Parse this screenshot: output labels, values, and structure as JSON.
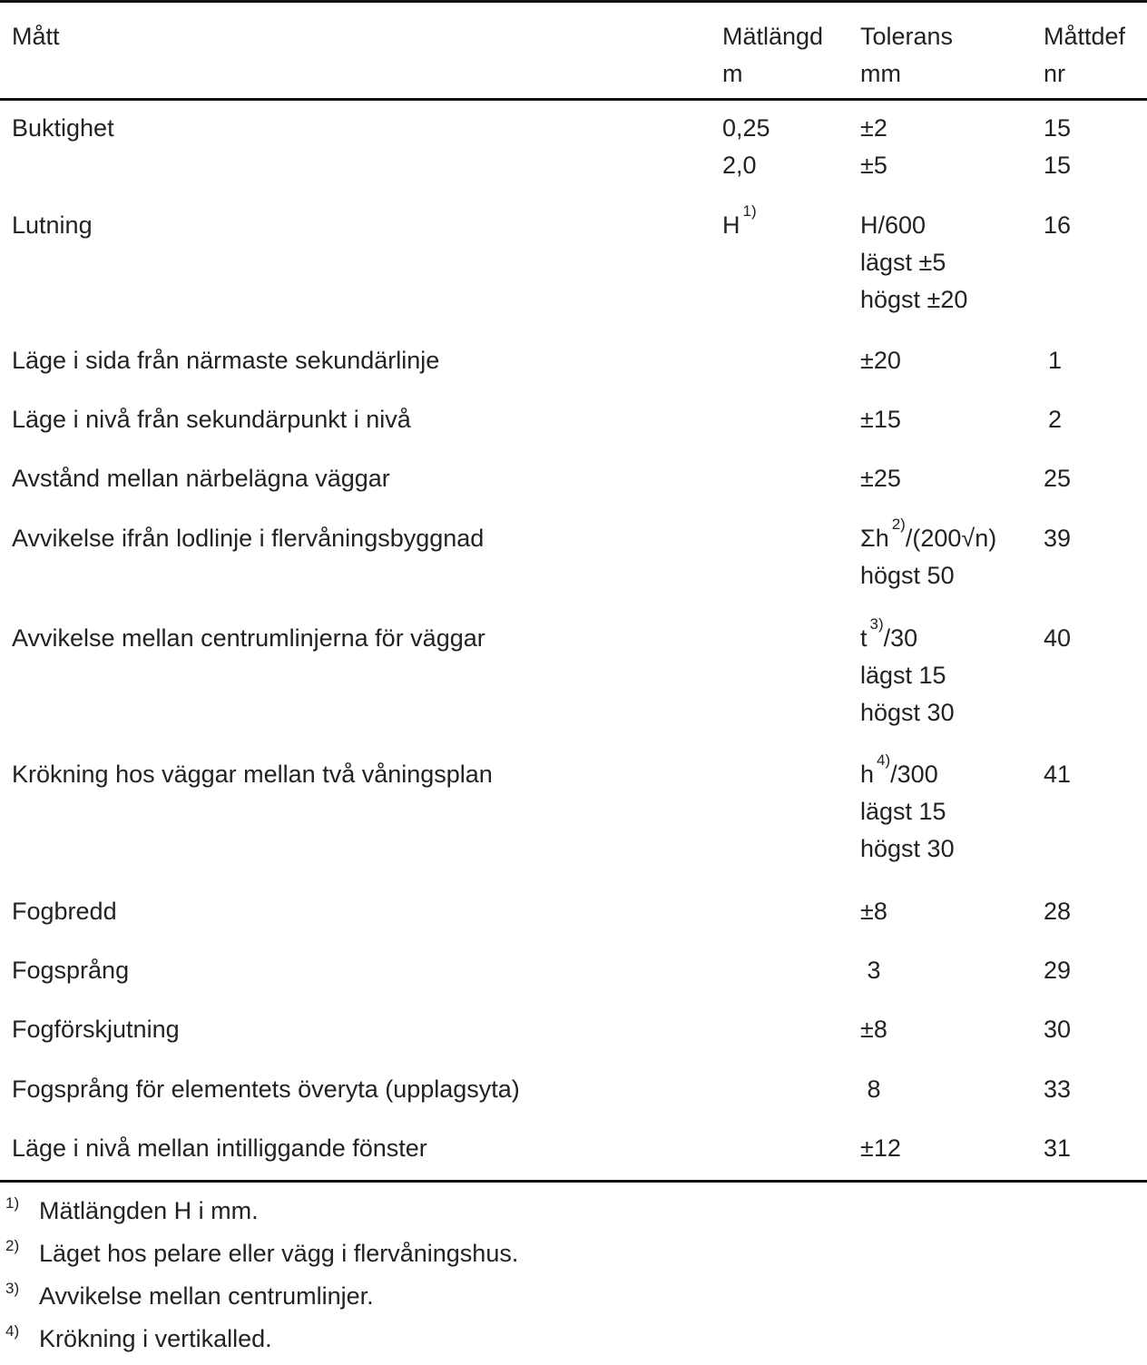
{
  "table": {
    "headers": [
      [
        "Mått"
      ],
      [
        "Mätlängd",
        "m"
      ],
      [
        "Tolerans",
        "mm"
      ],
      [
        "Måttdef",
        "nr"
      ]
    ],
    "rows": [
      {
        "matt": "Buktighet",
        "matlangd": [
          "0,25",
          "2,0"
        ],
        "tolerans": [
          "±2",
          "±5"
        ],
        "nr": [
          "15",
          "15"
        ]
      },
      {
        "matt": "Lutning",
        "matlangd": [
          "H"
        ],
        "matlangd_note": "1)",
        "tolerans": [
          "H/600",
          "lägst ±5",
          "högst ±20"
        ],
        "nr": [
          "16"
        ]
      },
      {
        "matt": "Läge i sida från närmaste sekundärlinje",
        "matlangd": [],
        "tolerans": [
          "±20"
        ],
        "nr": [
          "1"
        ]
      },
      {
        "matt": "Läge i nivå från sekundärpunkt i nivå",
        "matlangd": [],
        "tolerans": [
          "±15"
        ],
        "nr": [
          "2"
        ]
      },
      {
        "matt": "Avstånd mellan närbelägna väggar",
        "matlangd": [],
        "tolerans": [
          "±25"
        ],
        "nr": [
          "25"
        ]
      },
      {
        "matt": "Avvikelse ifrån lodlinje i flervåningsbyggnad",
        "matlangd": [],
        "tolerans_first": "Σh",
        "tolerans_note": "2)",
        "tolerans_rest": "/(200√n)",
        "tolerans": [
          "högst 50"
        ],
        "nr": [
          "39"
        ]
      },
      {
        "matt": "Avvikelse mellan centrumlinjerna för väggar",
        "matlangd": [],
        "tolerans_first": "t",
        "tolerans_note": "3)",
        "tolerans_rest": "/30",
        "tolerans": [
          "lägst 15",
          "högst 30"
        ],
        "nr": [
          "40"
        ]
      },
      {
        "matt": "Krökning hos väggar mellan två våningsplan",
        "matlangd": [],
        "tolerans_first": "h",
        "tolerans_note": "4)",
        "tolerans_rest": "/300",
        "tolerans": [
          "lägst 15",
          "högst 30"
        ],
        "nr": [
          "41"
        ]
      },
      {
        "matt": "Fogbredd",
        "matlangd": [],
        "tolerans": [
          "±8"
        ],
        "nr": [
          "28"
        ]
      },
      {
        "matt": "Fogsprång",
        "matlangd": [],
        "tolerans": [
          " 3"
        ],
        "nr": [
          "29"
        ]
      },
      {
        "matt": "Fogförskjutning",
        "matlangd": [],
        "tolerans": [
          "±8"
        ],
        "nr": [
          "30"
        ]
      },
      {
        "matt": "Fogsprång för elementets överyta (upplagsyta)",
        "matlangd": [],
        "tolerans": [
          " 8"
        ],
        "nr": [
          "33"
        ]
      },
      {
        "matt": "Läge i nivå mellan intilliggande fönster",
        "matlangd": [],
        "tolerans": [
          "±12"
        ],
        "nr": [
          "31"
        ]
      }
    ]
  },
  "footnotes": [
    {
      "mark": "1)",
      "text": "Mätlängden H i mm."
    },
    {
      "mark": "2)",
      "text": "Läget hos pelare eller vägg i flervåningshus."
    },
    {
      "mark": "3)",
      "text": "Avvikelse mellan centrumlinjer."
    },
    {
      "mark": "4)",
      "text": "Krökning i vertikalled."
    }
  ]
}
